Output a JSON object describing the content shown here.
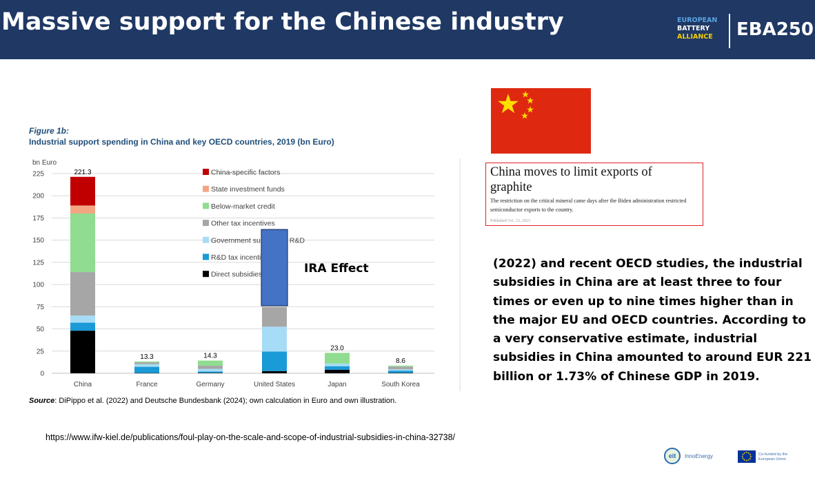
{
  "header": {
    "title": "Massive support for the Chinese industry",
    "logo_line1": "EUROPEAN",
    "logo_line2": "BATTERY",
    "logo_line3": "ALLIANCE",
    "badge": "EBA250",
    "color_bg": "#1f3864"
  },
  "chart_meta": {
    "figure_label": "Figure 1b:",
    "source_label": "Source",
    "source_text": ": DiPippo et al. (2022) and Deutsche Bundesbank (2024); own calculation in Euro and own illustration."
  },
  "chart_data": {
    "type": "bar",
    "stacked": true,
    "title": "Industrial support spending in China and key OECD countries, 2019 (bn Euro)",
    "ylabel": "bn Euro",
    "ylim": [
      0,
      225
    ],
    "yticks": [
      0,
      25,
      50,
      75,
      100,
      125,
      150,
      175,
      200,
      225
    ],
    "grid": true,
    "categories": [
      "China",
      "France",
      "Germany",
      "United States",
      "Japan",
      "South Korea"
    ],
    "totals": [
      "221.3",
      "13.3",
      "14.3",
      "",
      "23.0",
      "8.6"
    ],
    "legend_position": "top-center",
    "series": [
      {
        "name": "Direct subsidies",
        "color": "#000000",
        "values": [
          48,
          0.3,
          0.5,
          2.5,
          4,
          0.5
        ]
      },
      {
        "name": "R&D tax incentives",
        "color": "#1a9ad6",
        "values": [
          9,
          7,
          1.5,
          22,
          4,
          2.5
        ]
      },
      {
        "name": "Government support for R&D",
        "color": "#a6dcf5",
        "values": [
          8,
          3,
          3,
          28,
          3,
          1.5
        ]
      },
      {
        "name": "Other tax incentives",
        "color": "#a6a6a6",
        "values": [
          49,
          2,
          3.5,
          22,
          0,
          3
        ]
      },
      {
        "name": "Below-market credit",
        "color": "#90dc90",
        "values": [
          66,
          1,
          5.8,
          0,
          12,
          1.1
        ]
      },
      {
        "name": "State investment funds",
        "color": "#f4a582",
        "values": [
          9,
          0,
          0,
          0,
          0,
          0
        ]
      },
      {
        "name": "China-specific factors",
        "color": "#c00000",
        "values": [
          32.3,
          0,
          0,
          0,
          0,
          0
        ]
      }
    ],
    "overlay": {
      "label": "IRA Effect",
      "category": "United States",
      "from": 76,
      "to": 162,
      "color": "#4472c4"
    }
  },
  "url_text": "https://www.ifw-kiel.de/publications/foul-play-on-the-scale-and-scope-of-industrial-subsidies-in-china-32738/",
  "flag": {
    "colors": [
      "#de2910",
      "#ffde00"
    ]
  },
  "news": {
    "headline": "China moves to limit exports of graphite",
    "body": "The restriction on the critical mineral came days after the Biden administration restricted semiconductor exports to the country.",
    "date": "Published Oct. 23, 2023"
  },
  "paragraph": "(2022) and recent OECD studies, the industrial subsidies in China are at least three to four times or even up to nine times higher than in the major EU and OECD countries. According to a very conservative estimate, industrial subsidies in China amounted to around EUR 221 billion or 1.73% of Chinese GDP in 2019.",
  "footer": {
    "eit_label": "eit",
    "innoenergy_label": "InnoEnergy",
    "eu_label": "Co-funded by the European Union"
  }
}
